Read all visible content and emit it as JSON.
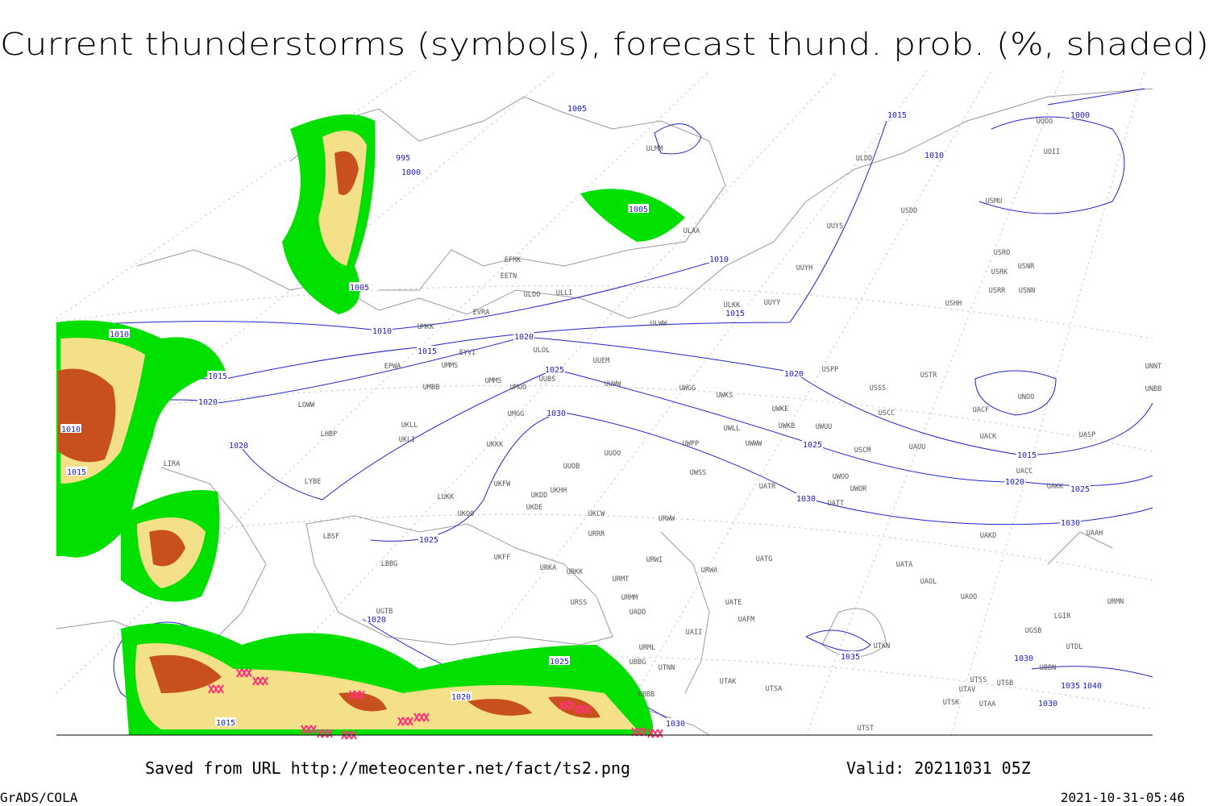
{
  "title": "Current thunderstorms (symbols), forecast thund. prob. (%, shaded)",
  "footer": {
    "source": "Saved from URL http://meteocenter.net/fact/ts2.png",
    "valid": "Valid: 20211031 05Z",
    "software": "GrADS/COLA",
    "timestamp": "2021-10-31-05:46"
  },
  "isobar_labels": [
    "995",
    "1000",
    "1005",
    "1005",
    "1005",
    "1010",
    "1010",
    "1010",
    "1015",
    "1015",
    "1015",
    "1020",
    "1020",
    "1025",
    "1030",
    "1010",
    "1015",
    "1020",
    "1020",
    "1025",
    "1030",
    "1025",
    "1020",
    "1025",
    "1020",
    "1015",
    "1030",
    "1035",
    "1015",
    "1010",
    "1000",
    "1015",
    "1020",
    "1025",
    "1030",
    "1030",
    "1035",
    "1040",
    "1030"
  ],
  "station_labels": [
    "ULMM",
    "ULDD",
    "USDD",
    "UOOO",
    "UOII",
    "USMU",
    "ULAA",
    "UUYS",
    "USRO",
    "USRK",
    "USNR",
    "USRR",
    "USNN",
    "EFHK",
    "EETN",
    "ULLI",
    "UUYH",
    "UUYY",
    "ULKK",
    "USHH",
    "EVRA",
    "ULOO",
    "UMKK",
    "ULWW",
    "EYVI",
    "ULOL",
    "EPWA",
    "UMMS",
    "UUEM",
    "USPP",
    "USSS",
    "USTR",
    "UNOO",
    "UNNT",
    "UNBB",
    "UMBB",
    "UMMS",
    "UUBS",
    "UMOO",
    "UUWW",
    "UWGG",
    "UWKS",
    "UWKE",
    "USCC",
    "UACF",
    "LOWW",
    "UKLL",
    "UMGG",
    "LHBP",
    "UKLI",
    "UWLL",
    "UWKB",
    "UWUU",
    "UACK",
    "UASP",
    "UKKK",
    "UUOO",
    "UWPP",
    "UWWW",
    "USCM",
    "UAUU",
    "LIRA",
    "UUOB",
    "UWSS",
    "UATR",
    "UWOO",
    "UWOR",
    "UACC",
    "UAKK",
    "LYBE",
    "UKHH",
    "UKDD",
    "UKDE",
    "LUKK",
    "UKOO",
    "UKFW",
    "UKCW",
    "URWW",
    "UATT",
    "URRR",
    "UAKD",
    "UAAH",
    "LBSF",
    "UKFF",
    "URWI",
    "UATG",
    "LBBG",
    "URKA",
    "URKK",
    "URWA",
    "UATA",
    "URMT",
    "UAOL",
    "UAOO",
    "URSS",
    "URMM",
    "UATE",
    "UAFM",
    "URMN",
    "UADD",
    "LGIR",
    "UGTB",
    "URML",
    "UAII",
    "UGSB",
    "UBBG",
    "UTNN",
    "UTKN",
    "UTDL",
    "UBBN",
    "UBBB",
    "UTAK",
    "UTSA",
    "UTSS",
    "UTSB",
    "UTAV",
    "UTSK",
    "UTAA",
    "UTST"
  ]
}
